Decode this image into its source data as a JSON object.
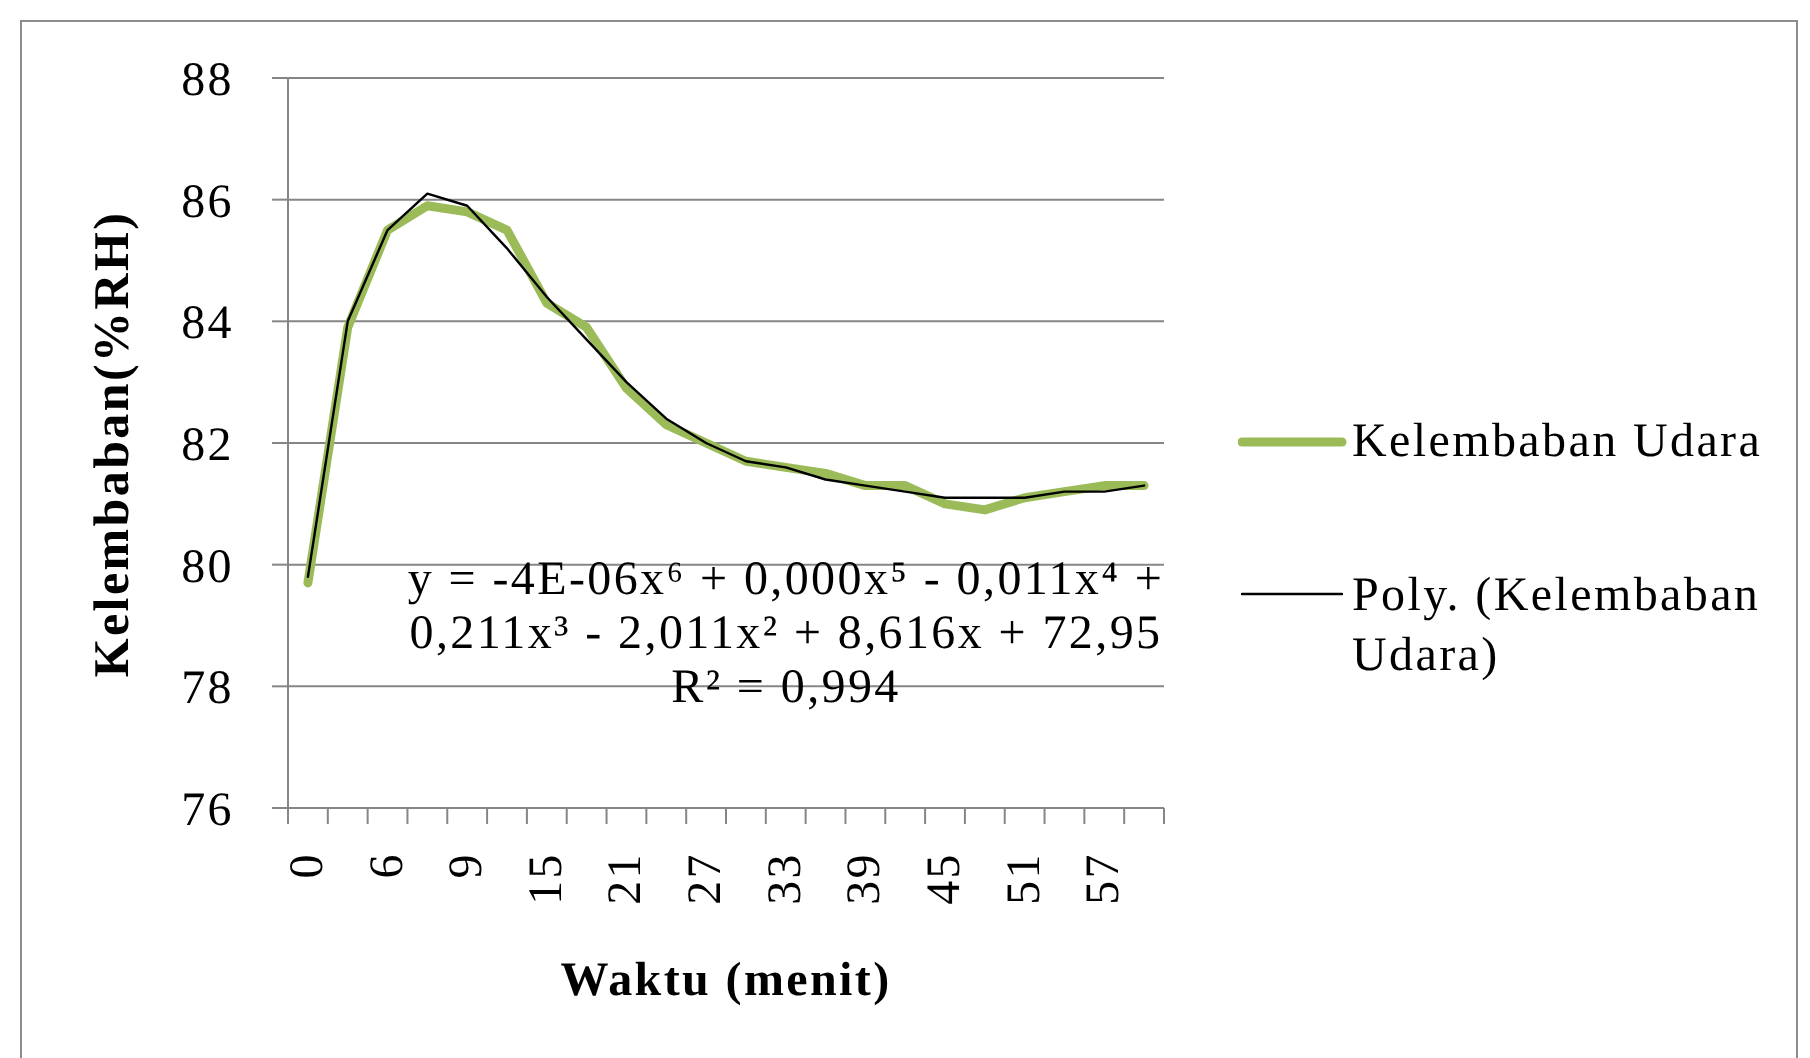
{
  "chart_data": {
    "type": "line",
    "xlabel": "Waktu (menit)",
    "ylabel": "Kelembaban(%RH)",
    "categories": [
      "0",
      null,
      "6",
      null,
      "9",
      null,
      "15",
      null,
      "21",
      null,
      "27",
      null,
      "33",
      null,
      "39",
      null,
      "45",
      null,
      "51",
      null,
      "57",
      null
    ],
    "series": [
      {
        "name": "Kelembaban Udara",
        "color": "#9bbb59",
        "values": [
          79.7,
          83.9,
          85.5,
          85.9,
          85.8,
          85.5,
          84.3,
          83.9,
          82.9,
          82.3,
          82.0,
          81.7,
          81.6,
          81.5,
          81.3,
          81.3,
          81.0,
          80.9,
          81.1,
          81.2,
          81.3,
          81.3
        ]
      },
      {
        "name": "Poly. (Kelembaban Udara)",
        "type": "line",
        "color": "#000000",
        "values": [
          79.8,
          84.0,
          85.5,
          86.1,
          85.9,
          85.2,
          84.4,
          83.7,
          83.0,
          82.4,
          82.0,
          81.7,
          81.6,
          81.4,
          81.3,
          81.2,
          81.1,
          81.1,
          81.1,
          81.2,
          81.2,
          81.3
        ]
      }
    ],
    "ylim": [
      76,
      88
    ],
    "yticks": [
      76,
      78,
      80,
      82,
      84,
      86,
      88
    ],
    "grid": "y",
    "legend": "right",
    "marker": "none",
    "annotations": [
      "y = -4E-06x⁶ + 0,000x⁵ - 0,011x⁴ + 0,211x³ - 2,011x² + 8,616x + 72,95",
      "R² = 0,994"
    ]
  }
}
